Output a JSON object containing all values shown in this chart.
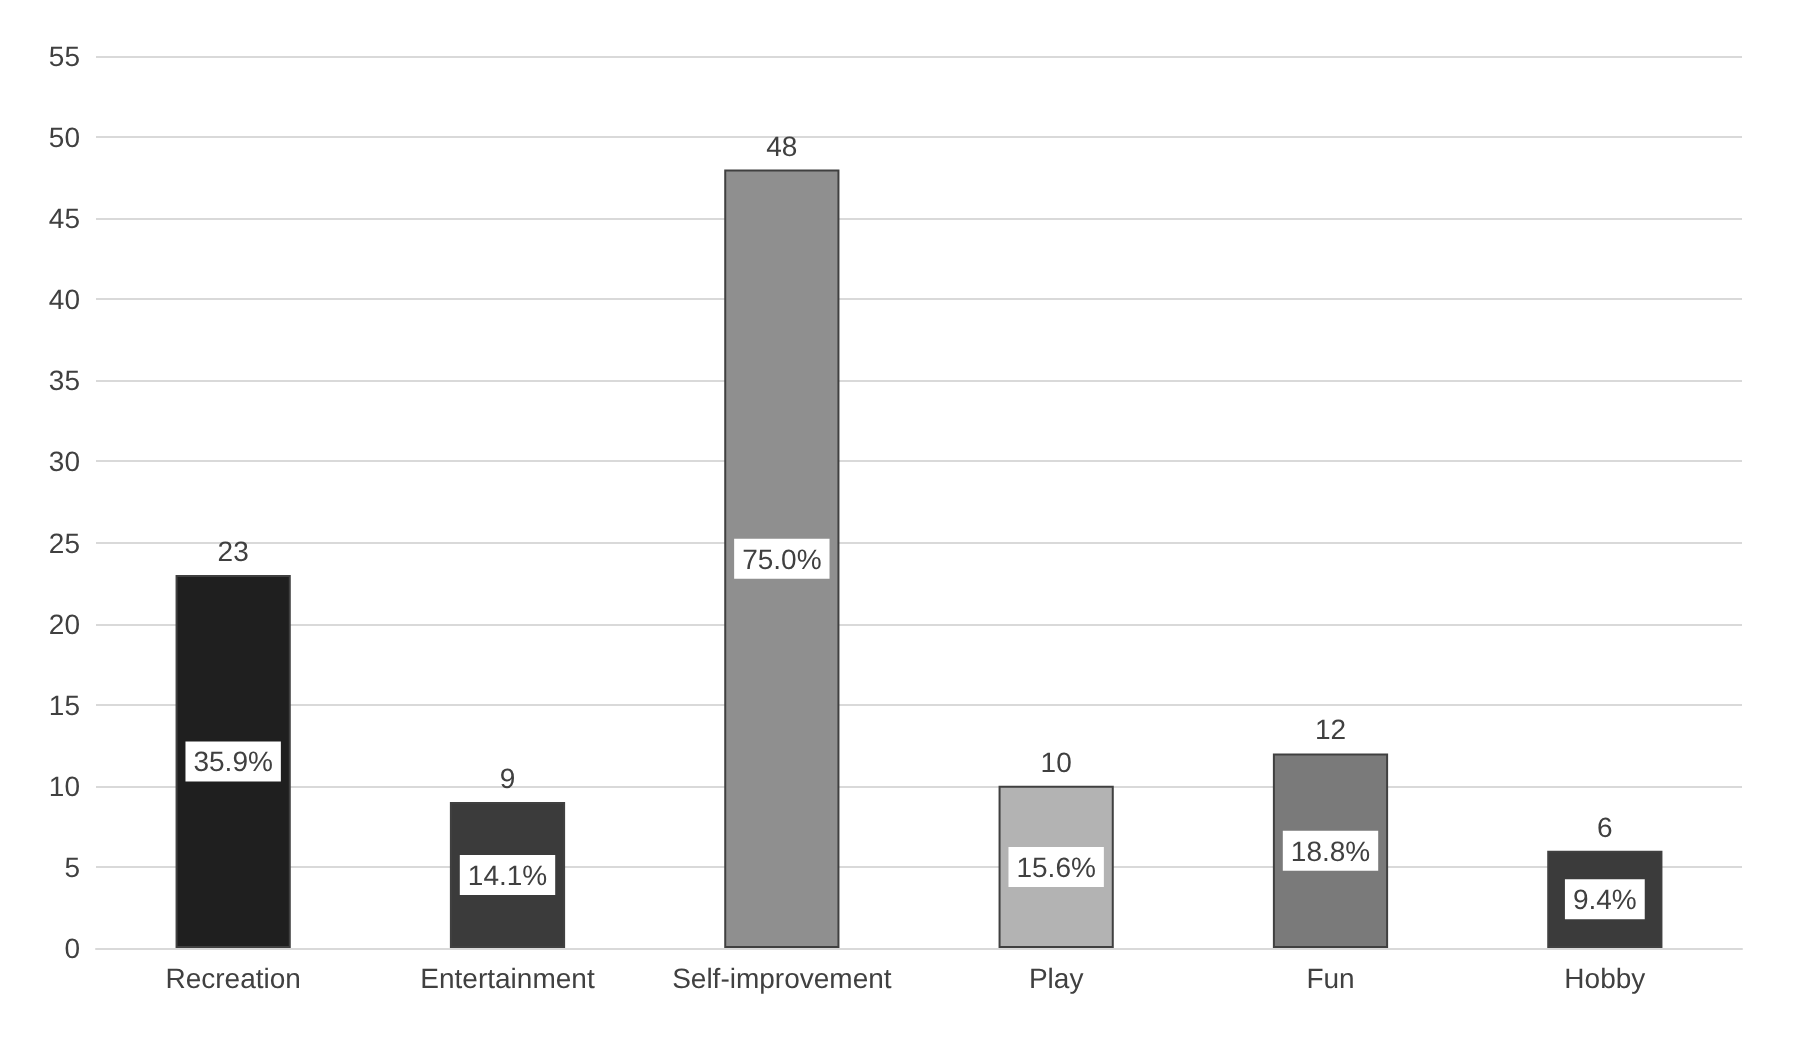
{
  "chart_data": {
    "type": "bar",
    "categories": [
      "Recreation",
      "Entertainment",
      "Self-improvement",
      "Play",
      "Fun",
      "Hobby"
    ],
    "values": [
      23,
      9,
      48,
      10,
      12,
      6
    ],
    "colors": [
      "#1f1f1f",
      "#3b3b3b",
      "#8f8f8f",
      "#b3b3b3",
      "#7a7a7a",
      "#3b3b3b"
    ],
    "data_labels": true,
    "annotations": [
      "35.9%",
      "14.1%",
      "75.0%",
      "15.6%",
      "18.8%",
      "9.4%"
    ],
    "ylim": [
      0,
      55
    ],
    "yticks": [
      0,
      5,
      10,
      15,
      20,
      25,
      30,
      35,
      40,
      45,
      50,
      55
    ],
    "grid": "y"
  }
}
